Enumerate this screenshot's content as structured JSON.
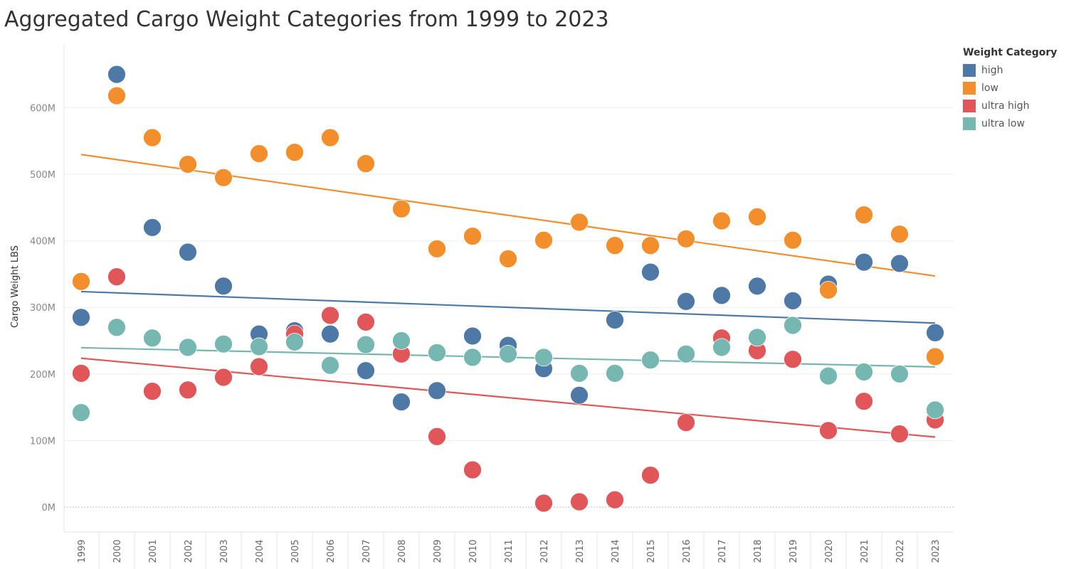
{
  "title": "Aggregated Cargo Weight Categories from 1999 to 2023",
  "chart_data": {
    "type": "scatter",
    "title": "Aggregated Cargo Weight Categories from 1999 to 2023",
    "xlabel": "",
    "ylabel": "Cargo Weight LBS",
    "ylim": [
      -40,
      690
    ],
    "y_ticks": [
      0,
      100,
      200,
      300,
      400,
      500,
      600
    ],
    "y_tick_labels": [
      "0M",
      "100M",
      "200M",
      "300M",
      "400M",
      "500M",
      "600M"
    ],
    "x": [
      "1999",
      "2000",
      "2001",
      "2002",
      "2003",
      "2004",
      "2005",
      "2006",
      "2007",
      "2008",
      "2009",
      "2010",
      "2011",
      "2012",
      "2013",
      "2014",
      "2015",
      "2016",
      "2017",
      "2018",
      "2019",
      "2020",
      "2021",
      "2022",
      "2023"
    ],
    "trend_lines": true,
    "grid": true,
    "legend_title": "Weight Category",
    "legend_position": "top-right",
    "series": [
      {
        "name": "high",
        "color": "#4e79a7",
        "values": [
          285,
          650,
          420,
          383,
          332,
          260,
          265,
          260,
          205,
          158,
          175,
          257,
          243,
          208,
          168,
          281,
          353,
          309,
          318,
          332,
          310,
          335,
          368,
          366,
          262
        ]
      },
      {
        "name": "low",
        "color": "#f28e2b",
        "values": [
          339,
          618,
          555,
          515,
          495,
          531,
          533,
          555,
          516,
          448,
          388,
          407,
          373,
          401,
          428,
          393,
          393,
          403,
          430,
          436,
          401,
          326,
          439,
          410,
          226
        ]
      },
      {
        "name": "ultra high",
        "color": "#e15759",
        "values": [
          201,
          346,
          174,
          176,
          195,
          211,
          260,
          288,
          278,
          230,
          106,
          56,
          null,
          6,
          8,
          11,
          48,
          127,
          254,
          235,
          222,
          115,
          159,
          110,
          131
        ]
      },
      {
        "name": "ultra low",
        "color": "#76b7b2",
        "values": [
          142,
          270,
          254,
          240,
          245,
          241,
          248,
          213,
          244,
          250,
          232,
          225,
          230,
          225,
          201,
          201,
          221,
          230,
          240,
          255,
          273,
          197,
          203,
          200,
          146
        ]
      }
    ]
  }
}
